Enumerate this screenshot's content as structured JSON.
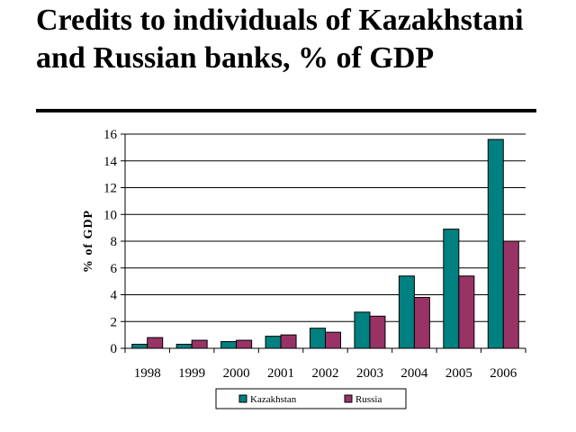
{
  "slide": {
    "title": "Credits to individuals of Kazakhstani and Russian banks, % of GDP"
  },
  "chart_data": {
    "type": "bar",
    "title": "",
    "xlabel": "",
    "ylabel": "% of GDP",
    "categories": [
      "1998",
      "1999",
      "2000",
      "2001",
      "2002",
      "2003",
      "2004",
      "2005",
      "2006"
    ],
    "series": [
      {
        "name": "Kazakhstan",
        "color": "#008080",
        "values": [
          0.3,
          0.3,
          0.5,
          0.9,
          1.5,
          2.7,
          5.4,
          8.9,
          15.6
        ]
      },
      {
        "name": "Russia",
        "color": "#993366",
        "values": [
          0.8,
          0.6,
          0.6,
          1.0,
          1.2,
          2.4,
          3.8,
          5.4,
          8.0
        ]
      }
    ],
    "ylim": [
      0,
      16
    ],
    "yticks": [
      0,
      2,
      4,
      6,
      8,
      10,
      12,
      14,
      16
    ],
    "grid": true,
    "legend_position": "bottom"
  }
}
